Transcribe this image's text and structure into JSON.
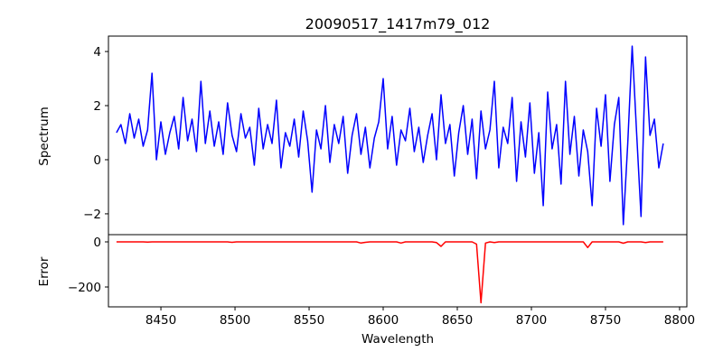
{
  "chart_data": [
    {
      "type": "line",
      "title": "20090517_1417m79_012",
      "xlabel": "",
      "ylabel": "Spectrum",
      "color": "#0000ff",
      "xlim": [
        8414.6,
        8804.9
      ],
      "ylim": [
        -2.77,
        4.57
      ],
      "yticks": [
        4,
        2,
        0,
        -2
      ],
      "ytick_labels": [
        "4",
        "2",
        "0",
        "−2"
      ],
      "x_start": 8420,
      "x_step": 3,
      "values": [
        1.0,
        1.3,
        0.6,
        1.7,
        0.8,
        1.5,
        0.5,
        1.1,
        3.2,
        0.0,
        1.4,
        0.2,
        1.0,
        1.6,
        0.4,
        2.3,
        0.7,
        1.5,
        0.3,
        2.9,
        0.6,
        1.8,
        0.5,
        1.4,
        0.2,
        2.1,
        0.9,
        0.3,
        1.7,
        0.8,
        1.2,
        -0.2,
        1.9,
        0.4,
        1.3,
        0.6,
        2.2,
        -0.3,
        1.0,
        0.5,
        1.5,
        0.1,
        1.8,
        0.7,
        -1.2,
        1.1,
        0.4,
        2.0,
        -0.1,
        1.3,
        0.6,
        1.6,
        -0.5,
        0.9,
        1.7,
        0.2,
        1.2,
        -0.3,
        0.8,
        1.4,
        3.0,
        0.4,
        1.6,
        -0.2,
        1.1,
        0.7,
        1.9,
        0.3,
        1.2,
        -0.1,
        0.9,
        1.7,
        0.0,
        2.4,
        0.6,
        1.3,
        -0.6,
        1.0,
        2.0,
        0.2,
        1.5,
        -0.7,
        1.8,
        0.4,
        1.1,
        2.9,
        -0.3,
        1.2,
        0.6,
        2.3,
        -0.8,
        1.4,
        0.1,
        2.1,
        -0.5,
        1.0,
        -1.7,
        2.5,
        0.4,
        1.3,
        -0.9,
        2.9,
        0.2,
        1.6,
        -0.6,
        1.1,
        0.3,
        -1.7,
        1.9,
        0.5,
        2.4,
        -0.8,
        1.3,
        2.3,
        -2.4,
        0.6,
        4.2,
        1.0,
        -2.1,
        3.8,
        0.9,
        1.5,
        -0.3,
        0.6
      ]
    },
    {
      "type": "line",
      "xlabel": "Wavelength",
      "ylabel": "Error",
      "color": "#ff0000",
      "xlim": [
        8414.6,
        8804.9
      ],
      "ylim": [
        -288,
        32
      ],
      "yticks": [
        0,
        -200
      ],
      "ytick_labels": [
        "0",
        "−200"
      ],
      "xticks": [
        8450,
        8500,
        8550,
        8600,
        8650,
        8700,
        8750,
        8800
      ],
      "xtick_labels": [
        "8450",
        "8500",
        "8550",
        "8600",
        "8650",
        "8700",
        "8750",
        "8800"
      ],
      "x_start": 8420,
      "x_step": 3,
      "values": [
        0,
        0,
        0,
        0,
        0,
        0,
        0,
        -1,
        0,
        0,
        0,
        0,
        0,
        0,
        0,
        0,
        0,
        0,
        0,
        0,
        0,
        0,
        0,
        0,
        0,
        0,
        -2,
        0,
        0,
        0,
        0,
        0,
        0,
        0,
        0,
        0,
        0,
        0,
        0,
        0,
        0,
        0,
        0,
        0,
        0,
        0,
        0,
        0,
        0,
        0,
        0,
        0,
        0,
        0,
        0,
        -5,
        -2,
        0,
        0,
        0,
        0,
        0,
        0,
        0,
        -5,
        0,
        0,
        0,
        0,
        0,
        0,
        0,
        -3,
        -20,
        0,
        0,
        0,
        0,
        0,
        0,
        0,
        -10,
        -270,
        -5,
        0,
        -3,
        0,
        0,
        0,
        0,
        0,
        0,
        0,
        0,
        0,
        0,
        0,
        0,
        0,
        0,
        0,
        0,
        0,
        0,
        0,
        0,
        -25,
        0,
        0,
        0,
        0,
        0,
        0,
        0,
        -6,
        0,
        0,
        0,
        0,
        -3,
        0,
        0,
        0,
        0
      ]
    }
  ]
}
